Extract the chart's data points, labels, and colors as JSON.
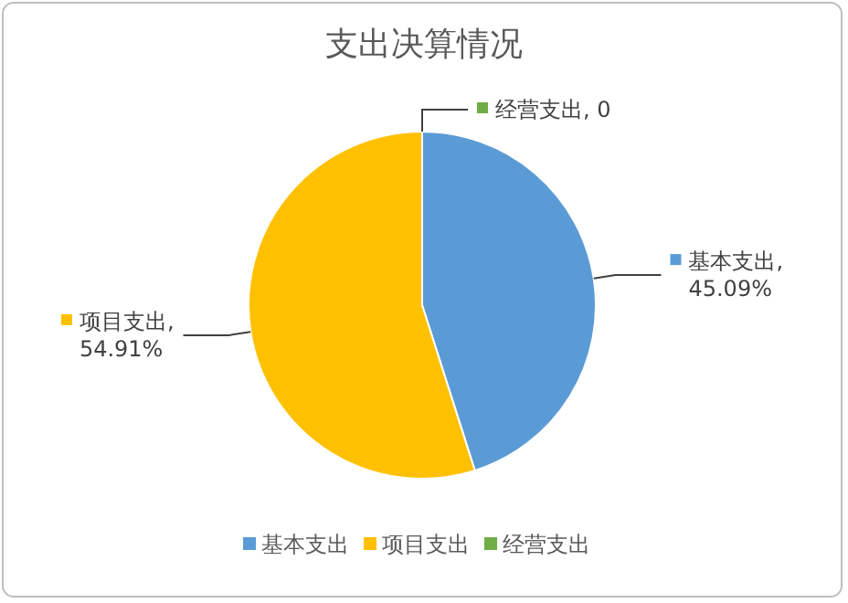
{
  "chart_data": {
    "type": "pie",
    "title": "支出决算情况",
    "categories": [
      "基本支出",
      "项目支出",
      "经营支出"
    ],
    "values": [
      45.09,
      54.91,
      0
    ],
    "value_labels": [
      "基本支出, 45.09%",
      "项目支出, 54.91%",
      "经营支出, 0"
    ],
    "colors": [
      "#5b9bd5",
      "#ffc000",
      "#70ad47"
    ],
    "legend": "bottom"
  }
}
